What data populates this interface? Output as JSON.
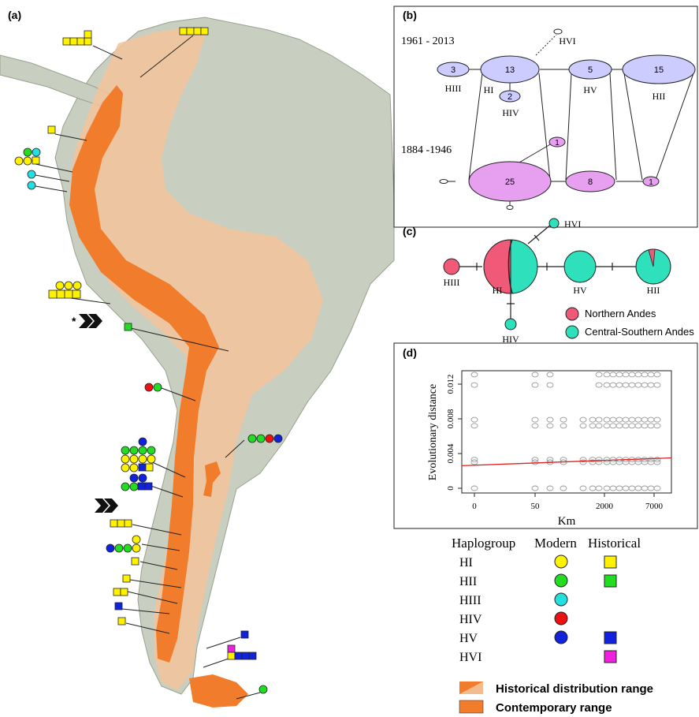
{
  "panels": {
    "a": "(a)",
    "b": "(b)",
    "c": "(c)",
    "d": "(d)"
  },
  "colors": {
    "HI": "#fff200",
    "HII": "#22dd22",
    "HIII": "#22e0e0",
    "HIV": "#ee1111",
    "HV": "#1122dd",
    "HVI": "#ee22dd",
    "historical_range": "#f2b98a",
    "contemporary_range": "#f07c2c",
    "northern_andes": "#f05a78",
    "central_southern_andes": "#2ee0bb",
    "network_node_modern": "#ccccff",
    "network_node_historical": "#e7a0f0"
  },
  "panel_b": {
    "periods": [
      "1961 - 2013",
      "1884 -1946"
    ],
    "modern_nodes": [
      {
        "label": "HIII",
        "count": "3"
      },
      {
        "label": "HI",
        "count": "13"
      },
      {
        "label": "HIV",
        "count": "2"
      },
      {
        "label": "HV",
        "count": "5"
      },
      {
        "label": "HII",
        "count": "15"
      },
      {
        "label": "HVI",
        "count": ""
      }
    ],
    "historical_nodes": [
      {
        "count": "25"
      },
      {
        "count": "1"
      },
      {
        "count": "8"
      },
      {
        "count": "1"
      }
    ]
  },
  "panel_c": {
    "nodes": [
      "HVI",
      "HIII",
      "HI",
      "HV",
      "HII",
      "HIV"
    ],
    "legend": [
      "Northern Andes",
      "Central-Southern Andes"
    ]
  },
  "chart_data": {
    "type": "scatter",
    "title": "",
    "xlabel": "Km",
    "ylabel": "Evolutionary distance",
    "x_scale": "log",
    "x_ticks": [
      "0",
      "50",
      "2000",
      "7000"
    ],
    "y_ticks": [
      "0",
      "0.004",
      "0.008",
      "0.012"
    ],
    "ylim": [
      0,
      0.013
    ],
    "regression": {
      "y_start": 0.0026,
      "y_end": 0.0035,
      "color": "#dd2222"
    },
    "distance_levels": [
      0,
      0.003,
      0.0033,
      0.0072,
      0.0079,
      0.0119,
      0.0131
    ],
    "points_x_km": [
      0,
      50,
      200,
      400,
      1000,
      2000,
      4000,
      7000
    ]
  },
  "legend_haplogroup": {
    "header": [
      "Haplogroup",
      "Modern",
      "Historical"
    ],
    "rows": [
      {
        "name": "HI",
        "modern": true,
        "historical": true
      },
      {
        "name": "HII",
        "modern": true,
        "historical": true
      },
      {
        "name": "HIII",
        "modern": true,
        "historical": false
      },
      {
        "name": "HIV",
        "modern": true,
        "historical": false
      },
      {
        "name": "HV",
        "modern": true,
        "historical": true
      },
      {
        "name": "HVI",
        "modern": false,
        "historical": true
      }
    ]
  },
  "legend_range": [
    "Historical distribution range",
    "Contemporary range"
  ],
  "map_markers": {
    "star": "*"
  }
}
